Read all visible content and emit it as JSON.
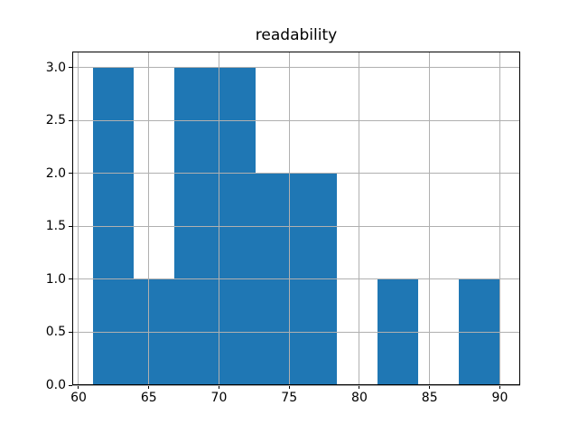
{
  "figure": {
    "background": "#ffffff",
    "text_color": "#000000",
    "frame_color": "#000000"
  },
  "chart_data": {
    "type": "histogram",
    "title": "readability",
    "xlabel": "",
    "ylabel": "",
    "bin_edges": [
      61.0,
      63.9,
      66.8,
      69.7,
      72.6,
      75.5,
      78.4,
      81.3,
      84.2,
      87.1,
      90.0
    ],
    "counts": [
      3,
      1,
      3,
      3,
      2,
      2,
      0,
      1,
      0,
      1
    ],
    "bar_color": "#1f77b4",
    "xlim": [
      59.55,
      91.45
    ],
    "ylim": [
      0,
      3.15
    ],
    "x_ticks": [
      60,
      65,
      70,
      75,
      80,
      85,
      90
    ],
    "x_tick_labels": [
      "60",
      "65",
      "70",
      "75",
      "80",
      "85",
      "90"
    ],
    "y_ticks": [
      0.0,
      0.5,
      1.0,
      1.5,
      2.0,
      2.5,
      3.0
    ],
    "y_tick_labels": [
      "0.0",
      "0.5",
      "1.0",
      "1.5",
      "2.0",
      "2.5",
      "3.0"
    ],
    "grid": true,
    "grid_color": "#b0b0b0",
    "grid_above_bars": true,
    "legend": null
  }
}
